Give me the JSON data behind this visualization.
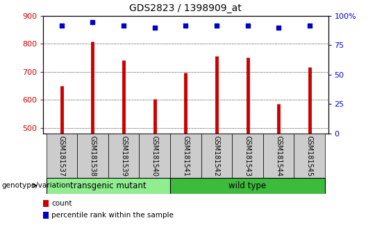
{
  "title": "GDS2823 / 1398909_at",
  "samples": [
    "GSM181537",
    "GSM181538",
    "GSM181539",
    "GSM181540",
    "GSM181541",
    "GSM181542",
    "GSM181543",
    "GSM181544",
    "GSM181545"
  ],
  "counts": [
    650,
    808,
    742,
    603,
    697,
    757,
    752,
    587,
    718
  ],
  "percentile_ranks": [
    92,
    95,
    92,
    90,
    92,
    92,
    92,
    90,
    92
  ],
  "ylim_left": [
    480,
    900
  ],
  "ylim_right": [
    0,
    100
  ],
  "yticks_left": [
    500,
    600,
    700,
    800,
    900
  ],
  "yticks_right": [
    0,
    25,
    50,
    75,
    100
  ],
  "bar_color": "#cc0000",
  "dot_color": "#0000cc",
  "transgenic_color": "#90ee90",
  "wild_type_color": "#3dbb3d",
  "group_label_transgenic": "transgenic mutant",
  "group_label_wild_type": "wild type",
  "genotype_label": "genotype/variation",
  "legend_count": "count",
  "legend_percentile": "percentile rank within the sample",
  "tick_label_color_left": "#cc0000",
  "tick_label_color_right": "#0000cc",
  "sample_bg_color": "#cccccc"
}
